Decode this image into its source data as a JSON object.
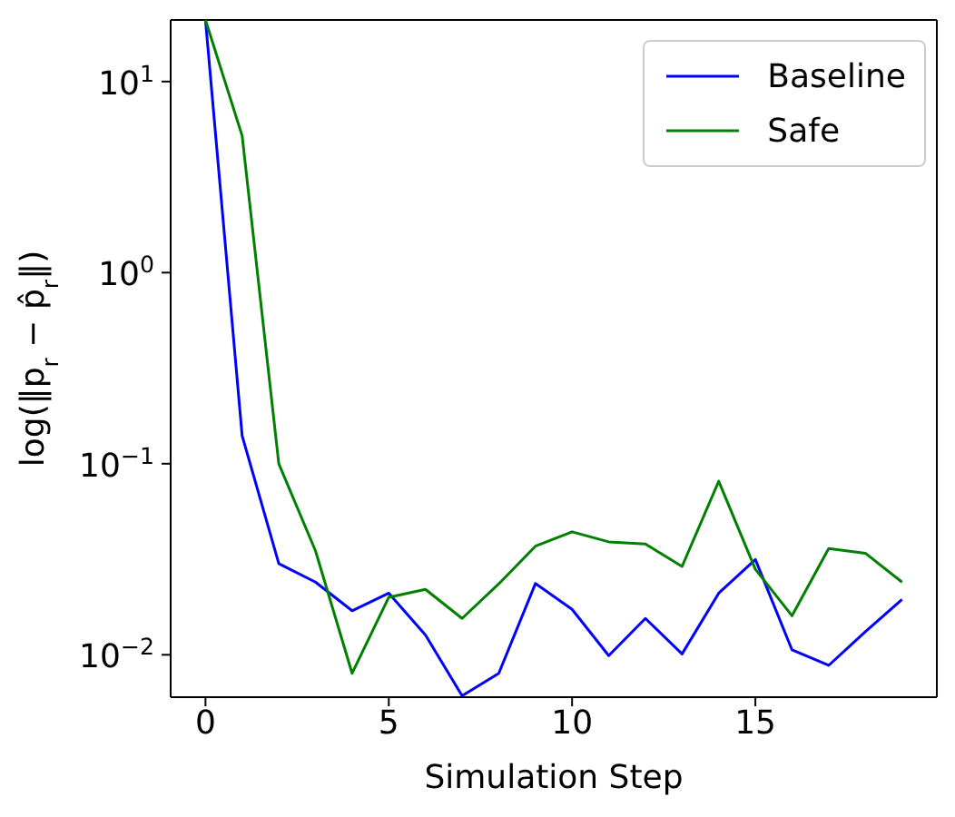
{
  "chart_data": {
    "type": "line",
    "xlabel": "Simulation Step",
    "ylabel": "log(‖p$_{r}$ − p̂$_{r}$‖)",
    "x": [
      0,
      1,
      2,
      3,
      4,
      5,
      6,
      7,
      8,
      9,
      10,
      11,
      12,
      13,
      14,
      15,
      16,
      17,
      18,
      19
    ],
    "series": [
      {
        "name": "Baseline",
        "color": "#0000ff",
        "values": [
          21,
          0.14,
          0.03,
          0.024,
          0.017,
          0.021,
          0.0127,
          0.0061,
          0.008,
          0.0236,
          0.0173,
          0.0099,
          0.0155,
          0.0101,
          0.021,
          0.0315,
          0.0106,
          0.0088,
          0.0132,
          0.0195
        ]
      },
      {
        "name": "Safe",
        "color": "#008000",
        "values": [
          21,
          5.2,
          0.1,
          0.035,
          0.008,
          0.02,
          0.022,
          0.0155,
          0.0235,
          0.037,
          0.044,
          0.039,
          0.038,
          0.029,
          0.081,
          0.028,
          0.016,
          0.036,
          0.034,
          0.024
        ]
      }
    ],
    "xlim": [
      -0.95,
      19.95
    ],
    "xticks": [
      0,
      5,
      10,
      15
    ],
    "ylim": [
      0.006,
      21
    ],
    "yticks": [
      {
        "value": 0.01,
        "label": "10$^{−2}$"
      },
      {
        "value": 0.1,
        "label": "10$^{−1}$"
      },
      {
        "value": 1,
        "label": "10$^{0}$"
      },
      {
        "value": 10,
        "label": "10$^{1}$"
      }
    ],
    "log": "y",
    "grid": false,
    "legend": "top right",
    "marker": "none",
    "line_style": "solid"
  }
}
